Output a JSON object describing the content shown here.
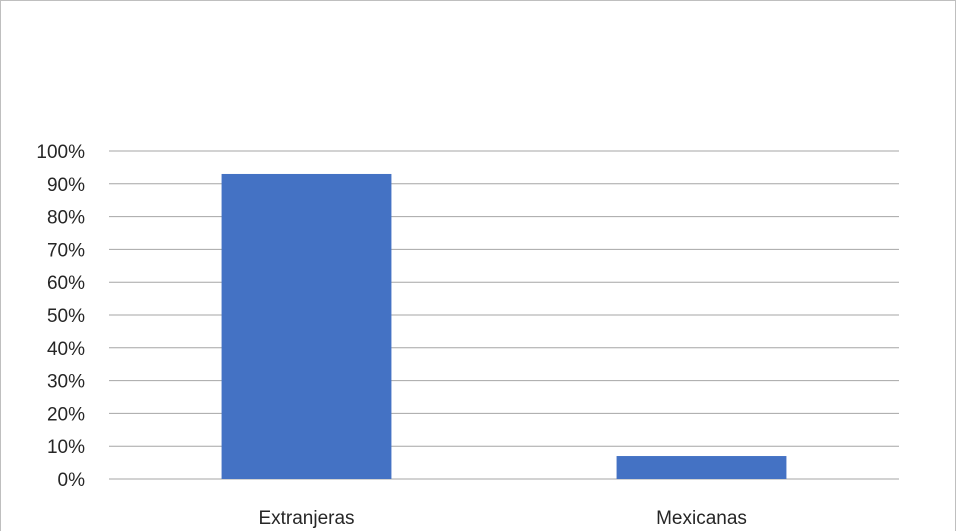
{
  "chart_data": {
    "type": "bar",
    "categories": [
      "Extranjeras",
      "Mexicanas"
    ],
    "values": [
      93,
      7
    ],
    "unit": "%",
    "ylim": [
      0,
      100
    ],
    "yticks": [
      "0%",
      "10%",
      "20%",
      "30%",
      "40%",
      "50%",
      "60%",
      "70%",
      "80%",
      "90%",
      "100%"
    ],
    "grid": true,
    "legend": false,
    "colors": {
      "bar": "#4472c4",
      "grid": "#a6a6a6",
      "text": "#262626"
    }
  }
}
